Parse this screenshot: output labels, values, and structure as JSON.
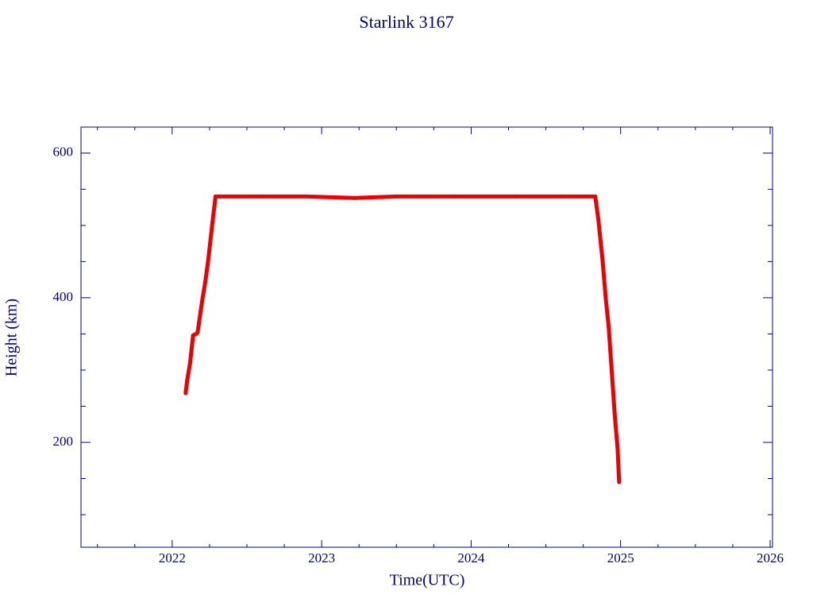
{
  "chart_data": {
    "type": "line",
    "title": "Starlink 3167",
    "x_label": "Time(UTC)",
    "y_label": "Height (km)",
    "x": [
      2022.09,
      2022.1,
      2022.12,
      2022.14,
      2022.16,
      2022.17,
      2022.2,
      2022.22,
      2022.24,
      2022.27,
      2022.29,
      2022.6,
      2022.9,
      2023.22,
      2023.5,
      2023.9,
      2024.3,
      2024.6,
      2024.83,
      2024.85,
      2024.87,
      2024.88,
      2024.9,
      2024.92,
      2024.93,
      2024.95,
      2024.96,
      2024.97,
      2024.98,
      2024.99
    ],
    "values": [
      268,
      285,
      310,
      348,
      350,
      352,
      395,
      420,
      450,
      505,
      540,
      540,
      540,
      538,
      540,
      540,
      540,
      540,
      540,
      510,
      470,
      450,
      400,
      360,
      330,
      270,
      240,
      215,
      190,
      145
    ],
    "color": "#ee0000",
    "xlim": [
      2021.39,
      2026.016
    ],
    "ylim": [
      55,
      636
    ],
    "xticks": [
      2022,
      2023,
      2024,
      2025,
      2026
    ],
    "yticks": [
      200,
      400,
      600
    ],
    "xminorticks": [
      2021.5,
      2021.75,
      2022.25,
      2022.5,
      2022.75,
      2023.25,
      2023.5,
      2023.75,
      2024.25,
      2024.5,
      2024.75,
      2025.25,
      2025.5,
      2025.75
    ],
    "yminorticks": [
      100,
      150,
      250,
      300,
      350,
      450,
      500,
      550
    ]
  }
}
